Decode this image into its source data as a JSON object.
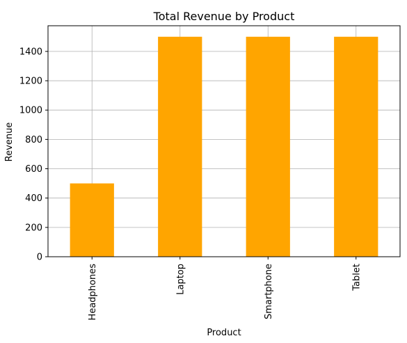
{
  "chart_data": {
    "type": "bar",
    "title": "Total Revenue by Product",
    "xlabel": "Product",
    "ylabel": "Revenue",
    "categories": [
      "Headphones",
      "Laptop",
      "Smartphone",
      "Tablet"
    ],
    "values": [
      500,
      1500,
      1500,
      1500
    ],
    "ylim": [
      0,
      1575
    ],
    "yticks": [
      0,
      200,
      400,
      600,
      800,
      1000,
      1200,
      1400
    ],
    "grid": true,
    "bar_color": "#FFA500"
  }
}
